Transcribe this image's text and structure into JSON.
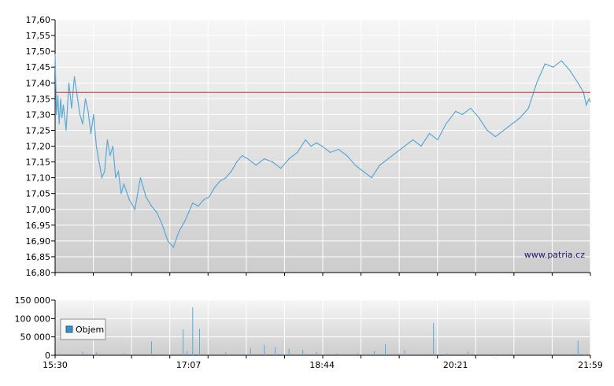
{
  "watermark": "www.patria.cz",
  "legend_label": "Objem",
  "colors": {
    "price_line": "#5aa9d6",
    "reference_line": "#cc3333",
    "volume_bar": "#5aa9d6",
    "legend_swatch": "#3d8fc4",
    "grid": "#ffffff"
  },
  "chart_data": [
    {
      "type": "line",
      "title": "",
      "xlabel": "",
      "ylabel": "",
      "ylim": [
        16.8,
        17.6
      ],
      "yticks": [
        "17,60",
        "17,55",
        "17,50",
        "17,45",
        "17,40",
        "17,35",
        "17,30",
        "17,25",
        "17,20",
        "17,15",
        "17,10",
        "17,05",
        "17,00",
        "16,95",
        "16,90",
        "16,85",
        "16,80"
      ],
      "xticks": [
        "15:30",
        "17:07",
        "18:44",
        "20:21",
        "21:59"
      ],
      "grid": true,
      "reference_value": 17.37,
      "series": [
        {
          "x": [
            "15:30",
            "15:31",
            "15:32",
            "15:33",
            "15:34",
            "15:35",
            "15:36",
            "15:38",
            "15:40",
            "15:42",
            "15:44",
            "15:46",
            "15:48",
            "15:50",
            "15:52",
            "15:54",
            "15:56",
            "15:58",
            "16:00",
            "16:02",
            "16:04",
            "16:06",
            "16:08",
            "16:10",
            "16:12",
            "16:14",
            "16:16",
            "16:18",
            "16:20",
            "16:24",
            "16:28",
            "16:32",
            "16:36",
            "16:40",
            "16:44",
            "16:48",
            "16:52",
            "16:56",
            "17:00",
            "17:04",
            "17:07",
            "17:10",
            "17:14",
            "17:18",
            "17:22",
            "17:26",
            "17:30",
            "17:34",
            "17:38",
            "17:42",
            "17:46",
            "17:50",
            "17:56",
            "18:02",
            "18:08",
            "18:14",
            "18:20",
            "18:26",
            "18:32",
            "18:36",
            "18:40",
            "18:44",
            "18:50",
            "18:56",
            "19:02",
            "19:08",
            "19:14",
            "19:20",
            "19:26",
            "19:32",
            "19:38",
            "19:44",
            "19:50",
            "19:56",
            "20:02",
            "20:08",
            "20:14",
            "20:21",
            "20:26",
            "20:32",
            "20:38",
            "20:44",
            "20:50",
            "20:56",
            "21:02",
            "21:08",
            "21:14",
            "21:20",
            "21:26",
            "21:32",
            "21:38",
            "21:44",
            "21:50",
            "21:54",
            "21:56",
            "21:58",
            "21:59"
          ],
          "y": [
            17.49,
            17.3,
            17.36,
            17.27,
            17.35,
            17.29,
            17.33,
            17.25,
            17.4,
            17.32,
            17.42,
            17.36,
            17.3,
            17.27,
            17.35,
            17.31,
            17.24,
            17.3,
            17.2,
            17.15,
            17.1,
            17.12,
            17.22,
            17.17,
            17.2,
            17.1,
            17.12,
            17.05,
            17.08,
            17.03,
            17.0,
            17.1,
            17.04,
            17.01,
            16.99,
            16.95,
            16.9,
            16.88,
            16.93,
            16.96,
            16.99,
            17.02,
            17.01,
            17.03,
            17.04,
            17.07,
            17.09,
            17.1,
            17.12,
            17.15,
            17.17,
            17.16,
            17.14,
            17.16,
            17.15,
            17.13,
            17.16,
            17.18,
            17.22,
            17.2,
            17.21,
            17.2,
            17.18,
            17.19,
            17.17,
            17.14,
            17.12,
            17.1,
            17.14,
            17.16,
            17.18,
            17.2,
            17.22,
            17.2,
            17.24,
            17.22,
            17.27,
            17.31,
            17.3,
            17.32,
            17.29,
            17.25,
            17.23,
            17.25,
            17.27,
            17.29,
            17.32,
            17.4,
            17.46,
            17.45,
            17.47,
            17.44,
            17.4,
            17.37,
            17.33,
            17.35,
            17.34
          ]
        }
      ]
    },
    {
      "type": "bar",
      "title": "",
      "xlabel": "",
      "ylabel": "",
      "ylim": [
        0,
        150000
      ],
      "yticks": [
        "150 000",
        "100 000",
        "50 000",
        "0"
      ],
      "xticks": [
        "15:30",
        "17:07",
        "18:44",
        "20:21",
        "21:59"
      ],
      "grid": true,
      "legend": "bottom-left",
      "series": [
        {
          "name": "Objem",
          "x": [
            "15:34",
            "15:50",
            "16:00",
            "16:20",
            "16:40",
            "16:52",
            "17:03",
            "17:06",
            "17:10",
            "17:15",
            "17:22",
            "17:34",
            "17:52",
            "18:02",
            "18:10",
            "18:20",
            "18:30",
            "18:40",
            "18:55",
            "19:10",
            "19:22",
            "19:30",
            "19:40",
            "19:44",
            "20:05",
            "20:15",
            "20:30",
            "20:50",
            "21:05",
            "21:30",
            "21:50",
            "21:55"
          ],
          "y": [
            4000,
            10000,
            8000,
            6000,
            38000,
            3000,
            70000,
            12000,
            130000,
            72000,
            3000,
            8000,
            20000,
            28000,
            22000,
            18000,
            15000,
            9000,
            5000,
            6000,
            12000,
            30000,
            5000,
            14000,
            88000,
            5000,
            10000,
            4000,
            3000,
            5000,
            40000,
            3000
          ]
        }
      ]
    }
  ]
}
